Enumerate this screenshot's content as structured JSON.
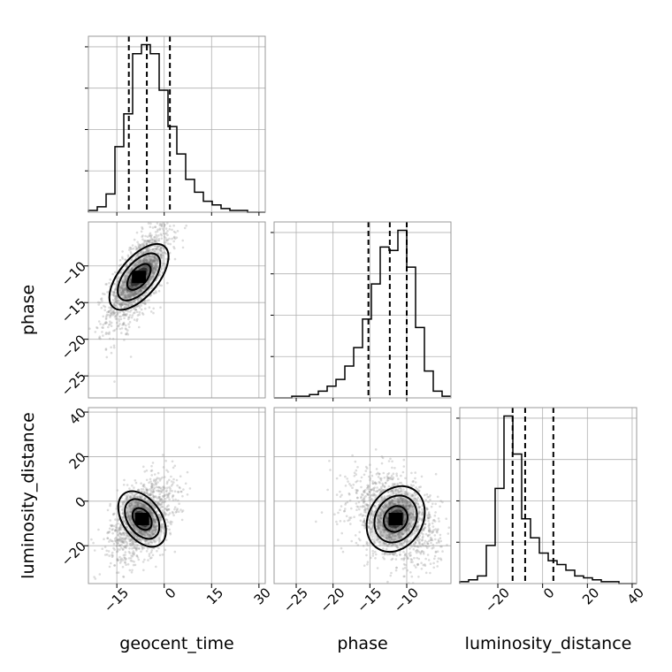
{
  "chart_data": {
    "type": "corner",
    "parameters": [
      "geocent_time",
      "phase",
      "luminosity_distance"
    ],
    "ranges": {
      "geocent_time": [
        -24,
        32
      ],
      "phase": [
        -28,
        -4
      ],
      "luminosity_distance": [
        -37,
        42
      ]
    },
    "ticks": {
      "geocent_time": [
        -15,
        0,
        15,
        30
      ],
      "phase": [
        -25,
        -20,
        -15,
        -10
      ],
      "luminosity_distance": [
        -20,
        0,
        20,
        40
      ]
    },
    "tick_labels": {
      "geocent_time": [
        "−15",
        "0",
        "15",
        "30"
      ],
      "phase": [
        "−25",
        "−20",
        "−15",
        "−10"
      ],
      "luminosity_distance": [
        "−20",
        "0",
        "20",
        "40"
      ]
    },
    "quantiles": {
      "geocent_time": [
        -11.2,
        -5.5,
        1.8
      ],
      "phase": [
        -15.2,
        -12.3,
        -10.0
      ],
      "luminosity_distance": [
        -13.4,
        -7.8,
        4.8
      ]
    },
    "histograms": {
      "geocent_time": {
        "bin_start": -24,
        "bin_width": 2.8,
        "counts": [
          1,
          3,
          10,
          36,
          54,
          87,
          92,
          87,
          67,
          47,
          32,
          18,
          11,
          6,
          4,
          2,
          1,
          1,
          0,
          0
        ]
      },
      "phase": {
        "bin_start": -28,
        "bin_width": 1.2,
        "counts": [
          0,
          0,
          1,
          1,
          2,
          4,
          7,
          11,
          19,
          30,
          47,
          68,
          90,
          88,
          100,
          78,
          42,
          16,
          4,
          1
        ]
      },
      "luminosity_distance": {
        "bin_start": -37,
        "bin_width": 3.95,
        "counts": [
          1,
          2,
          4,
          20,
          50,
          88,
          68,
          34,
          24,
          16,
          12,
          10,
          7,
          4,
          3,
          2,
          1,
          1,
          0,
          0
        ]
      }
    },
    "pairs": [
      {
        "x": "geocent_time",
        "y": "phase",
        "center": [
          -8,
          -11.5
        ],
        "sigma": [
          5,
          3.5
        ],
        "rho": 0.7,
        "rotation_deg": -50
      },
      {
        "x": "geocent_time",
        "y": "luminosity_distance",
        "center": [
          -7,
          -8
        ],
        "sigma": [
          5,
          9
        ],
        "rho": 0.45,
        "rotation_deg": 55
      },
      {
        "x": "phase",
        "y": "luminosity_distance",
        "center": [
          -11.5,
          -8
        ],
        "sigma": [
          3,
          10
        ],
        "rho": -0.35,
        "rotation_deg": -60
      }
    ]
  }
}
